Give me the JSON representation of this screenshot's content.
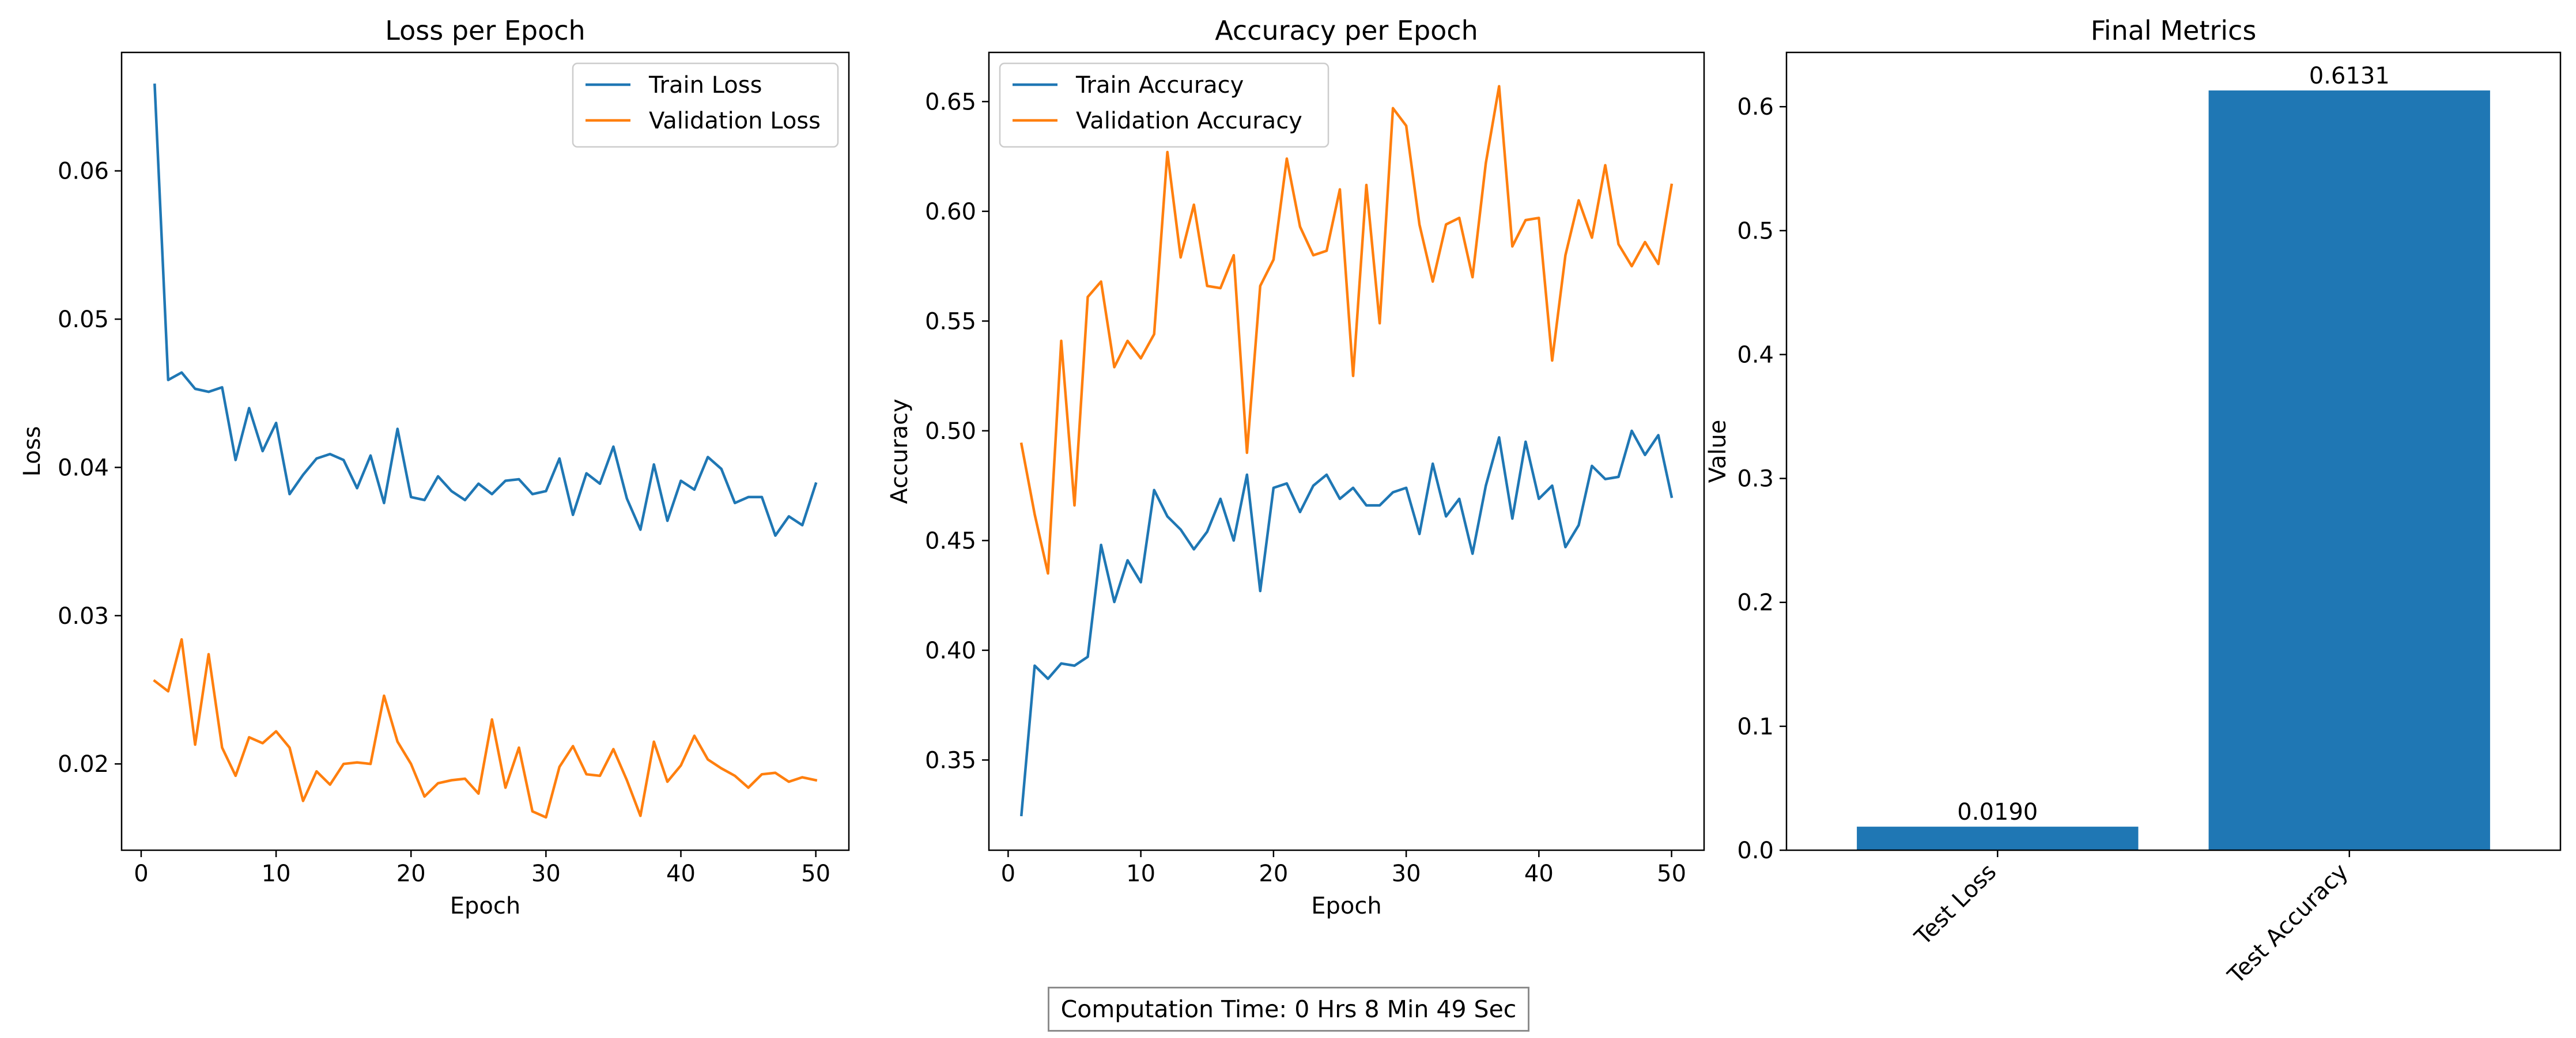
{
  "colors": {
    "blue": "#1f77b4",
    "orange": "#ff7f0e",
    "axis": "#000000",
    "legend_border": "#cccccc"
  },
  "footer": {
    "text": "Computation Time: 0 Hrs 8 Min 49 Sec"
  },
  "chart_data": [
    {
      "type": "line",
      "title": "Loss per Epoch",
      "xlabel": "Epoch",
      "ylabel": "Loss",
      "xlim": [
        -1.45,
        52.45
      ],
      "ylim": [
        0.01418,
        0.06799
      ],
      "xticks": [
        0,
        10,
        20,
        30,
        40,
        50
      ],
      "xtick_labels": [
        "0",
        "10",
        "20",
        "30",
        "40",
        "50"
      ],
      "yticks": [
        0.02,
        0.03,
        0.04,
        0.05,
        0.06
      ],
      "ytick_labels": [
        "0.02",
        "0.03",
        "0.04",
        "0.05",
        "0.06"
      ],
      "legend_position": "top-right",
      "grid": false,
      "x": [
        1,
        2,
        3,
        4,
        5,
        6,
        7,
        8,
        9,
        10,
        11,
        12,
        13,
        14,
        15,
        16,
        17,
        18,
        19,
        20,
        21,
        22,
        23,
        24,
        25,
        26,
        27,
        28,
        29,
        30,
        31,
        32,
        33,
        34,
        35,
        36,
        37,
        38,
        39,
        40,
        41,
        42,
        43,
        44,
        45,
        46,
        47,
        48,
        49,
        50
      ],
      "series": [
        {
          "name": "Train Loss",
          "color": "#1f77b4",
          "values": [
            0.0658,
            0.0459,
            0.0464,
            0.0453,
            0.0451,
            0.0454,
            0.0405,
            0.044,
            0.0411,
            0.043,
            0.0382,
            0.0395,
            0.0406,
            0.0409,
            0.0405,
            0.0386,
            0.0408,
            0.0376,
            0.0426,
            0.038,
            0.0378,
            0.0394,
            0.0384,
            0.0378,
            0.0389,
            0.0382,
            0.0391,
            0.0392,
            0.0382,
            0.0384,
            0.0406,
            0.0368,
            0.0396,
            0.0389,
            0.0414,
            0.0379,
            0.0358,
            0.0402,
            0.0364,
            0.0391,
            0.0385,
            0.0407,
            0.0399,
            0.0376,
            0.038,
            0.038,
            0.0354,
            0.0367,
            0.0361,
            0.0389
          ]
        },
        {
          "name": "Validation Loss",
          "color": "#ff7f0e",
          "values": [
            0.0256,
            0.0249,
            0.0284,
            0.0213,
            0.0274,
            0.0211,
            0.0192,
            0.0218,
            0.0214,
            0.0222,
            0.0211,
            0.0175,
            0.0195,
            0.0186,
            0.02,
            0.0201,
            0.02,
            0.0246,
            0.0215,
            0.02,
            0.0178,
            0.0187,
            0.0189,
            0.019,
            0.018,
            0.023,
            0.0184,
            0.0211,
            0.0168,
            0.0164,
            0.0198,
            0.0212,
            0.0193,
            0.0192,
            0.021,
            0.0189,
            0.0165,
            0.0215,
            0.0188,
            0.0199,
            0.0219,
            0.0203,
            0.0197,
            0.0192,
            0.0184,
            0.0193,
            0.0194,
            0.0188,
            0.0191,
            0.0189
          ]
        }
      ]
    },
    {
      "type": "line",
      "title": "Accuracy per Epoch",
      "xlabel": "Epoch",
      "ylabel": "Accuracy",
      "xlim": [
        -1.45,
        52.45
      ],
      "ylim": [
        0.3089,
        0.6724
      ],
      "xticks": [
        0,
        10,
        20,
        30,
        40,
        50
      ],
      "xtick_labels": [
        "0",
        "10",
        "20",
        "30",
        "40",
        "50"
      ],
      "yticks": [
        0.35,
        0.4,
        0.45,
        0.5,
        0.55,
        0.6,
        0.65
      ],
      "ytick_labels": [
        "0.35",
        "0.40",
        "0.45",
        "0.50",
        "0.55",
        "0.60",
        "0.65"
      ],
      "legend_position": "top-left",
      "grid": false,
      "x": [
        1,
        2,
        3,
        4,
        5,
        6,
        7,
        8,
        9,
        10,
        11,
        12,
        13,
        14,
        15,
        16,
        17,
        18,
        19,
        20,
        21,
        22,
        23,
        24,
        25,
        26,
        27,
        28,
        29,
        30,
        31,
        32,
        33,
        34,
        35,
        36,
        37,
        38,
        39,
        40,
        41,
        42,
        43,
        44,
        45,
        46,
        47,
        48,
        49,
        50
      ],
      "series": [
        {
          "name": "Train Accuracy",
          "color": "#1f77b4",
          "values": [
            0.325,
            0.393,
            0.387,
            0.394,
            0.393,
            0.397,
            0.448,
            0.422,
            0.441,
            0.431,
            0.473,
            0.461,
            0.455,
            0.446,
            0.454,
            0.469,
            0.45,
            0.48,
            0.427,
            0.474,
            0.476,
            0.463,
            0.475,
            0.48,
            0.469,
            0.474,
            0.466,
            0.466,
            0.472,
            0.474,
            0.453,
            0.485,
            0.461,
            0.469,
            0.444,
            0.475,
            0.497,
            0.46,
            0.495,
            0.469,
            0.475,
            0.447,
            0.457,
            0.484,
            0.478,
            0.479,
            0.5,
            0.489,
            0.498,
            0.47
          ]
        },
        {
          "name": "Validation Accuracy",
          "color": "#ff7f0e",
          "values": [
            0.494,
            0.462,
            0.435,
            0.541,
            0.466,
            0.561,
            0.568,
            0.529,
            0.541,
            0.533,
            0.544,
            0.627,
            0.579,
            0.603,
            0.566,
            0.565,
            0.58,
            0.49,
            0.566,
            0.578,
            0.624,
            0.593,
            0.58,
            0.582,
            0.61,
            0.525,
            0.612,
            0.549,
            0.647,
            0.639,
            0.594,
            0.568,
            0.594,
            0.597,
            0.57,
            0.622,
            0.657,
            0.584,
            0.596,
            0.597,
            0.532,
            0.58,
            0.605,
            0.588,
            0.621,
            0.585,
            0.575,
            0.586,
            0.576,
            0.612
          ]
        }
      ]
    },
    {
      "type": "bar",
      "title": "Final Metrics",
      "xlabel": "",
      "ylabel": "Value",
      "ylim": [
        0,
        0.6438
      ],
      "yticks": [
        0.0,
        0.1,
        0.2,
        0.3,
        0.4,
        0.5,
        0.6
      ],
      "ytick_labels": [
        "0.0",
        "0.1",
        "0.2",
        "0.3",
        "0.4",
        "0.5",
        "0.6"
      ],
      "categories": [
        "Test Loss",
        "Test Accuracy"
      ],
      "values": [
        0.019,
        0.6131
      ],
      "value_labels": [
        "0.0190",
        "0.6131"
      ],
      "color": "#1f77b4",
      "grid": false
    }
  ]
}
